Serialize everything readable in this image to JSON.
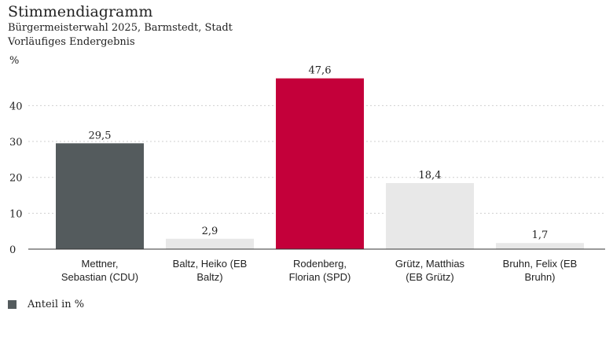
{
  "header": {
    "title": "Stimmendiagramm",
    "subtitle": "Bürgermeisterwahl 2025, Barmstedt, Stadt",
    "note": "Vorläufiges Endergebnis"
  },
  "legend": {
    "label": "Anteil in %",
    "color": "#545B5D"
  },
  "chart_data": {
    "type": "bar",
    "title": "Stimmendiagramm",
    "ylabel": "%",
    "xlabel": "",
    "ylim": [
      0,
      50
    ],
    "yticks": [
      0,
      10,
      20,
      30,
      40
    ],
    "grid": true,
    "legend_position": "bottom-left",
    "categories": [
      [
        "Mettner,",
        "Sebastian (CDU)"
      ],
      [
        "Baltz, Heiko (EB",
        "Baltz)"
      ],
      [
        "Rodenberg,",
        "Florian (SPD)"
      ],
      [
        "Grütz, Matthias",
        "(EB Grütz)"
      ],
      [
        "Bruhn, Felix (EB",
        "Bruhn)"
      ]
    ],
    "values": [
      29.5,
      2.9,
      47.6,
      18.4,
      1.7
    ],
    "value_labels": [
      "29,5",
      "2,9",
      "47,6",
      "18,4",
      "1,7"
    ],
    "colors": [
      "#545B5D",
      "#E8E8E8",
      "#C4003A",
      "#E8E8E8",
      "#E8E8E8"
    ],
    "series": [
      {
        "name": "Anteil in %",
        "values": [
          29.5,
          2.9,
          47.6,
          18.4,
          1.7
        ]
      }
    ]
  }
}
